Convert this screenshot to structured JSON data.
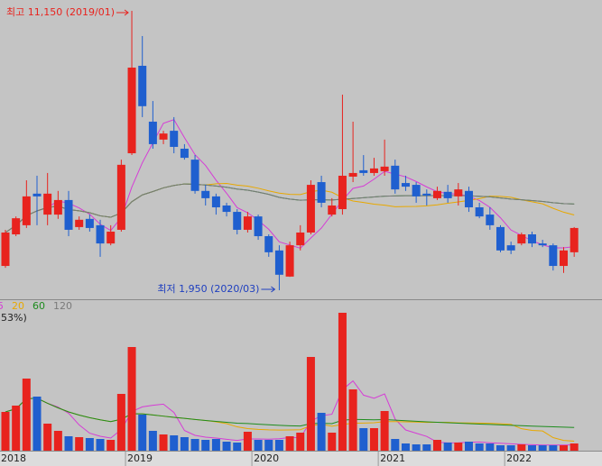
{
  "chart_data": {
    "type": "candlestick",
    "categories": [
      "2018",
      null,
      null,
      null,
      null,
      null,
      null,
      null,
      null,
      null,
      null,
      null,
      "2019",
      null,
      null,
      null,
      null,
      null,
      null,
      null,
      null,
      null,
      null,
      null,
      "2020",
      null,
      null,
      null,
      null,
      null,
      null,
      null,
      null,
      null,
      null,
      null,
      "2021",
      null,
      null,
      null,
      null,
      null,
      null,
      null,
      null,
      null,
      null,
      null,
      "2022",
      null,
      null,
      null,
      null,
      null,
      null
    ],
    "open": [
      2750,
      3790,
      4090,
      5130,
      4440,
      4440,
      4920,
      4030,
      4300,
      4090,
      3490,
      3940,
      6460,
      9340,
      7500,
      6910,
      7200,
      6610,
      6250,
      5220,
      5040,
      4740,
      4530,
      3940,
      4380,
      3730,
      3260,
      2400,
      3430,
      3850,
      5510,
      4440,
      4620,
      5690,
      5900,
      5810,
      5870,
      6050,
      5480,
      5420,
      5130,
      4980,
      5190,
      5040,
      5220,
      4680,
      4440,
      4030,
      3430,
      3490,
      3790,
      3490,
      3430,
      2750,
      3200
    ],
    "high": [
      3940,
      4380,
      5570,
      5720,
      5810,
      5220,
      5220,
      4380,
      4440,
      4270,
      4090,
      6250,
      11150,
      10320,
      8180,
      7200,
      7650,
      6760,
      6400,
      5420,
      5130,
      4830,
      4620,
      4530,
      4440,
      3790,
      3430,
      3550,
      4090,
      5570,
      5720,
      4980,
      8390,
      7500,
      6400,
      6310,
      6910,
      6250,
      5720,
      5510,
      5270,
      5360,
      5420,
      5480,
      5360,
      4830,
      4680,
      4090,
      3550,
      3850,
      3880,
      3610,
      3490,
      3370,
      4030
    ],
    "low": [
      2690,
      3730,
      4000,
      4090,
      4090,
      4300,
      3730,
      3940,
      3880,
      3050,
      3430,
      3880,
      6400,
      7650,
      6610,
      6760,
      6460,
      6250,
      5130,
      4740,
      4440,
      4380,
      3790,
      3850,
      3610,
      3050,
      1950,
      2390,
      3260,
      3790,
      4680,
      4380,
      4440,
      5510,
      5720,
      5720,
      5720,
      5130,
      5220,
      4830,
      4740,
      4920,
      4830,
      4740,
      4530,
      4320,
      3940,
      3200,
      3140,
      3430,
      3370,
      3370,
      2600,
      2520,
      3050
    ],
    "close": [
      3850,
      4320,
      5040,
      5040,
      5130,
      4920,
      3940,
      4270,
      4000,
      3490,
      3880,
      6080,
      9280,
      8010,
      6760,
      7110,
      6670,
      6310,
      5220,
      4980,
      4680,
      4530,
      3940,
      4380,
      3730,
      3200,
      2460,
      3430,
      3850,
      5420,
      4830,
      4740,
      5720,
      5810,
      5810,
      5960,
      6020,
      5270,
      5360,
      5040,
      5070,
      5220,
      4980,
      5270,
      4680,
      4380,
      4090,
      3260,
      3260,
      3790,
      3490,
      3430,
      2750,
      3260,
      4000
    ],
    "volume": [
      43,
      50,
      80,
      60,
      30,
      22,
      16,
      15,
      14,
      13,
      12,
      63,
      115,
      40,
      22,
      18,
      17,
      15,
      13,
      12,
      13,
      10,
      9,
      21,
      12,
      12,
      12,
      16,
      20,
      104,
      42,
      20,
      153,
      68,
      25,
      25,
      44,
      13,
      8,
      7,
      7,
      12,
      9,
      9,
      10,
      8,
      8,
      6,
      6,
      7,
      6,
      6,
      6,
      6,
      8
    ],
    "up_color": "#e8231e",
    "down_color": "#1f5fcf",
    "moving_averages": [
      {
        "period": 5,
        "color": "#d63cd6"
      },
      {
        "period": 20,
        "color": "#e8a800"
      },
      {
        "period": 60,
        "color": "#1e8c1e"
      },
      {
        "period": 120,
        "color": "#7a7a7a"
      }
    ],
    "volume_note": "53%)",
    "annotations": [
      {
        "text": "최고 11,150 (2019/01)",
        "color": "#e8231e"
      },
      {
        "text": "최저 1,950 (2020/03)",
        "color": "#1f3fbf"
      }
    ]
  }
}
